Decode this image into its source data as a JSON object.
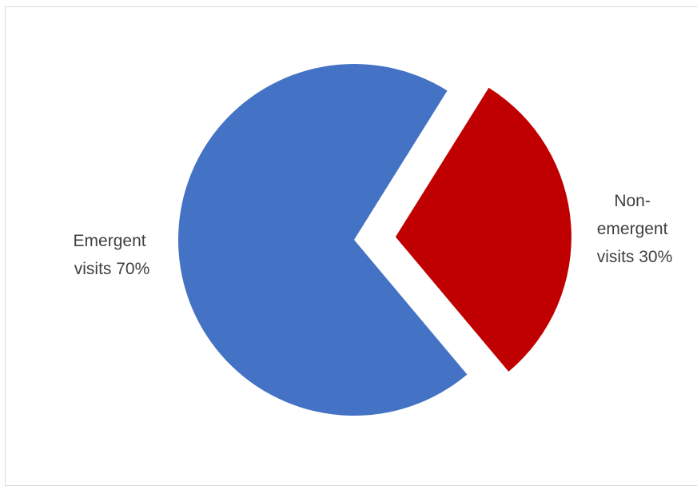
{
  "chart_data": {
    "type": "pie",
    "title": "",
    "slices": [
      {
        "label_lines": [
          "Emergent",
          "visits 70%"
        ],
        "category": "Emergent visits",
        "value": 70,
        "color": "#4472C4",
        "exploded": false
      },
      {
        "label_lines": [
          "Non-",
          "emergent",
          "visits 30%"
        ],
        "category": "Non-emergent visits",
        "value": 30,
        "color": "#C00000",
        "exploded": true
      }
    ],
    "legend": "none"
  }
}
